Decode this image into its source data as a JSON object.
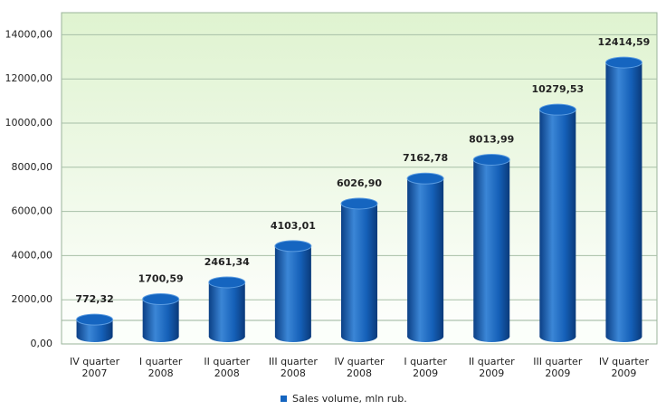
{
  "chart_data": {
    "type": "bar",
    "categories": [
      [
        "IV quarter",
        "2007"
      ],
      [
        "I quarter",
        "2008"
      ],
      [
        "II quarter",
        "2008"
      ],
      [
        "III quarter",
        "2008"
      ],
      [
        "IV quarter",
        "2008"
      ],
      [
        "I quarter",
        "2009"
      ],
      [
        "II quarter",
        "2009"
      ],
      [
        "III quarter",
        "2009"
      ],
      [
        "IV quarter",
        "2009"
      ]
    ],
    "series": [
      {
        "name": "Sales volume, mln rub.",
        "color": "#1565c0",
        "values": [
          772.32,
          1700.59,
          2461.34,
          4103.01,
          6026.9,
          7162.78,
          8013.99,
          10279.53,
          12414.59
        ],
        "value_labels": [
          "772,32",
          "1700,59",
          "2461,34",
          "4103,01",
          "6026,90",
          "7162,78",
          "8013,99",
          "10279,53",
          "12414,59"
        ]
      }
    ],
    "ylim": [
      0,
      15000
    ],
    "yticks": [
      {
        "value": 0,
        "label": "0,00"
      },
      {
        "value": 2000,
        "label": "2000,00"
      },
      {
        "value": 4000,
        "label": "4000,00"
      },
      {
        "value": 6000,
        "label": "6000,00"
      },
      {
        "value": 8000,
        "label": "8000,00"
      },
      {
        "value": 10000,
        "label": "10000,00"
      },
      {
        "value": 12000,
        "label": "12000,00"
      },
      {
        "value": 14000,
        "label": "14000,00"
      }
    ],
    "grid": true,
    "legend": "bottom"
  }
}
